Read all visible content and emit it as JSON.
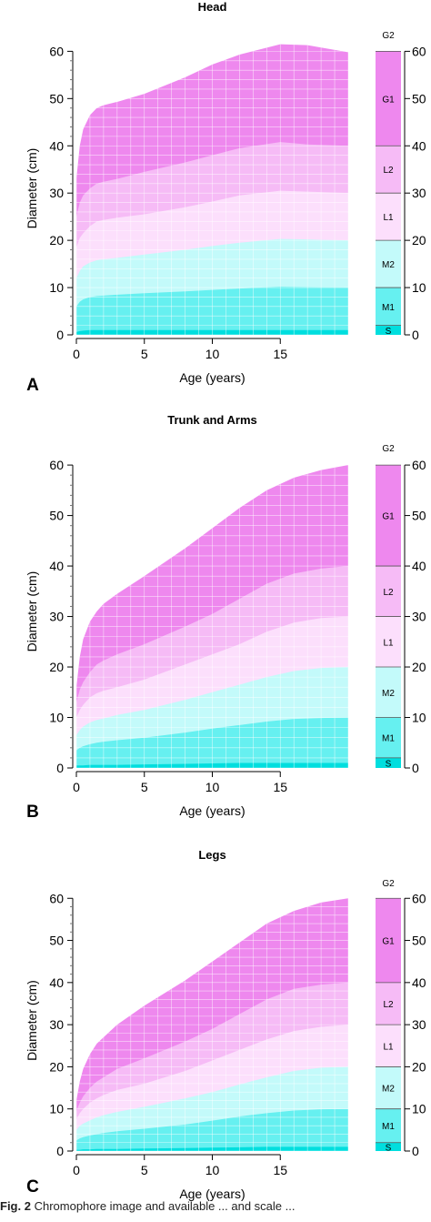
{
  "chart_data": [
    {
      "type": "area",
      "panel_letter": "A",
      "title": "Head",
      "xlabel": "Age (years)",
      "ylabel": "Diameter (cm)",
      "xlim": [
        0,
        20
      ],
      "ylim": [
        0,
        62
      ],
      "x_ticks": [
        0,
        5,
        10,
        15
      ],
      "y_ticks": [
        0,
        10,
        20,
        30,
        40,
        50,
        60
      ],
      "grid": true,
      "x": [
        0,
        0.25,
        0.5,
        1,
        1.5,
        2,
        3,
        5,
        8,
        10,
        12,
        15,
        17,
        18,
        20
      ],
      "series": [
        {
          "name": "G1",
          "color": "#ee88ee",
          "values": [
            33,
            40,
            43.5,
            46.5,
            48,
            48.6,
            49.3,
            51,
            54.5,
            57.2,
            59.3,
            61.5,
            61.3,
            60.8,
            59.8
          ]
        },
        {
          "name": "L2",
          "color": "#f6bbf6",
          "values": [
            25,
            28,
            29.5,
            31,
            32,
            32.4,
            33,
            34.5,
            36.5,
            38,
            39.5,
            40.8,
            40.3,
            40.2,
            40
          ]
        },
        {
          "name": "L1",
          "color": "#fcdffc",
          "values": [
            18.5,
            20.5,
            21.5,
            23,
            24,
            24.3,
            24.8,
            25.5,
            27,
            28.2,
            29.5,
            30.5,
            30.3,
            30.2,
            30
          ]
        },
        {
          "name": "M2",
          "color": "#c3fafa",
          "values": [
            12,
            13.5,
            14.5,
            15.3,
            15.8,
            16,
            16.3,
            17,
            18,
            18.8,
            19.5,
            20.3,
            20.2,
            20.1,
            20
          ]
        },
        {
          "name": "M1",
          "color": "#66f0f0",
          "values": [
            6,
            7,
            7.5,
            8,
            8.2,
            8.3,
            8.5,
            8.8,
            9.2,
            9.5,
            9.8,
            10.2,
            10.1,
            10.05,
            10
          ]
        },
        {
          "name": "S",
          "color": "#00dede",
          "values": [
            0.6,
            0.8,
            0.9,
            1,
            1,
            1,
            1,
            1,
            1,
            1,
            1,
            1,
            1,
            1,
            1
          ]
        }
      ]
    },
    {
      "type": "area",
      "panel_letter": "B",
      "title": "Trunk and Arms",
      "xlabel": "Age (years)",
      "ylabel": "Diameter (cm)",
      "xlim": [
        0,
        20
      ],
      "ylim": [
        0,
        62
      ],
      "x_ticks": [
        0,
        5,
        10,
        15
      ],
      "y_ticks": [
        0,
        10,
        20,
        30,
        40,
        50,
        60
      ],
      "grid": true,
      "x": [
        0,
        0.25,
        0.5,
        1,
        1.5,
        2,
        3,
        5,
        8,
        10,
        12,
        14,
        16,
        18,
        20
      ],
      "series": [
        {
          "name": "G1",
          "color": "#ee88ee",
          "values": [
            16,
            22,
            25.5,
            29,
            31,
            32.5,
            34.5,
            38,
            43.5,
            47.5,
            51.5,
            55,
            57.5,
            59,
            60
          ]
        },
        {
          "name": "L2",
          "color": "#f6bbf6",
          "values": [
            13,
            15.5,
            17,
            19,
            20.5,
            21.3,
            22.5,
            24.5,
            28,
            30.5,
            33.5,
            36.5,
            38.5,
            39.5,
            40
          ]
        },
        {
          "name": "L1",
          "color": "#fcdffc",
          "values": [
            10,
            11.5,
            12.5,
            14,
            14.8,
            15.3,
            16,
            17.5,
            20.5,
            22.5,
            24.5,
            27,
            28.8,
            29.7,
            30
          ]
        },
        {
          "name": "M2",
          "color": "#c3fafa",
          "values": [
            6.5,
            7.5,
            8.2,
            9,
            9.5,
            9.8,
            10.5,
            11.5,
            13.5,
            15,
            16.5,
            18,
            19.2,
            19.8,
            20
          ]
        },
        {
          "name": "M1",
          "color": "#66f0f0",
          "values": [
            3.5,
            4,
            4.3,
            4.7,
            5,
            5.2,
            5.5,
            6,
            7,
            7.8,
            8.5,
            9.2,
            9.7,
            9.9,
            10
          ]
        },
        {
          "name": "S",
          "color": "#00dede",
          "values": [
            0.5,
            0.5,
            0.5,
            0.6,
            0.6,
            0.6,
            0.6,
            0.7,
            0.8,
            0.9,
            1,
            1,
            1,
            1,
            1
          ]
        }
      ]
    },
    {
      "type": "area",
      "panel_letter": "C",
      "title": "Legs",
      "xlabel": "Age (years)",
      "ylabel": "Diameter (cm)",
      "xlim": [
        0,
        20
      ],
      "ylim": [
        0,
        62
      ],
      "x_ticks": [
        0,
        5,
        10,
        15
      ],
      "y_ticks": [
        0,
        10,
        20,
        30,
        40,
        50,
        60
      ],
      "grid": true,
      "x": [
        0,
        0.25,
        0.5,
        1,
        1.5,
        2,
        3,
        5,
        8,
        10,
        12,
        14,
        16,
        18,
        20
      ],
      "series": [
        {
          "name": "G1",
          "color": "#ee88ee",
          "values": [
            12,
            16.5,
            19.5,
            23,
            25.5,
            27,
            30,
            34.5,
            40.5,
            45,
            49.5,
            54,
            57,
            59,
            60
          ]
        },
        {
          "name": "L2",
          "color": "#f6bbf6",
          "values": [
            9.5,
            11.5,
            13,
            15,
            16.5,
            17.5,
            19.5,
            22,
            26,
            29,
            32.5,
            36,
            38.5,
            39.5,
            40
          ]
        },
        {
          "name": "L1",
          "color": "#fcdffc",
          "values": [
            7.5,
            9,
            10,
            11.5,
            12.5,
            13.3,
            14.5,
            16,
            19,
            21.5,
            24,
            26.5,
            28.5,
            29.5,
            30
          ]
        },
        {
          "name": "M2",
          "color": "#c3fafa",
          "values": [
            5,
            6,
            6.5,
            7.3,
            8,
            8.5,
            9.3,
            10.5,
            12.5,
            14,
            15.8,
            17.5,
            19,
            19.8,
            20
          ]
        },
        {
          "name": "M1",
          "color": "#66f0f0",
          "values": [
            2.5,
            3,
            3.3,
            3.7,
            4,
            4.3,
            4.7,
            5.3,
            6.3,
            7.2,
            8.2,
            9,
            9.6,
            9.9,
            10
          ]
        },
        {
          "name": "S",
          "color": "#00dede",
          "values": [
            0.3,
            0.3,
            0.4,
            0.4,
            0.5,
            0.5,
            0.5,
            0.6,
            0.7,
            0.8,
            0.9,
            1,
            1,
            1,
            1
          ]
        }
      ]
    }
  ],
  "legend": {
    "grades": [
      {
        "label": "G2",
        "from": 60,
        "to": 62,
        "color": "#ffffff",
        "text_above": true
      },
      {
        "label": "G1",
        "from": 40,
        "to": 60,
        "color": "#ee88ee"
      },
      {
        "label": "L2",
        "from": 30,
        "to": 40,
        "color": "#f6bbf6"
      },
      {
        "label": "L1",
        "from": 20,
        "to": 30,
        "color": "#fcdffc"
      },
      {
        "label": "M2",
        "from": 10,
        "to": 20,
        "color": "#c3fafa"
      },
      {
        "label": "M1",
        "from": 2,
        "to": 10,
        "color": "#66f0f0"
      },
      {
        "label": "S",
        "from": 0,
        "to": 2,
        "color": "#00dede"
      }
    ],
    "axis_ticks": [
      0,
      10,
      20,
      30,
      40,
      50,
      60
    ]
  },
  "caption": {
    "fig_label": "Fig. 2",
    "text": "Chromophore image and available ... and scale ..."
  }
}
